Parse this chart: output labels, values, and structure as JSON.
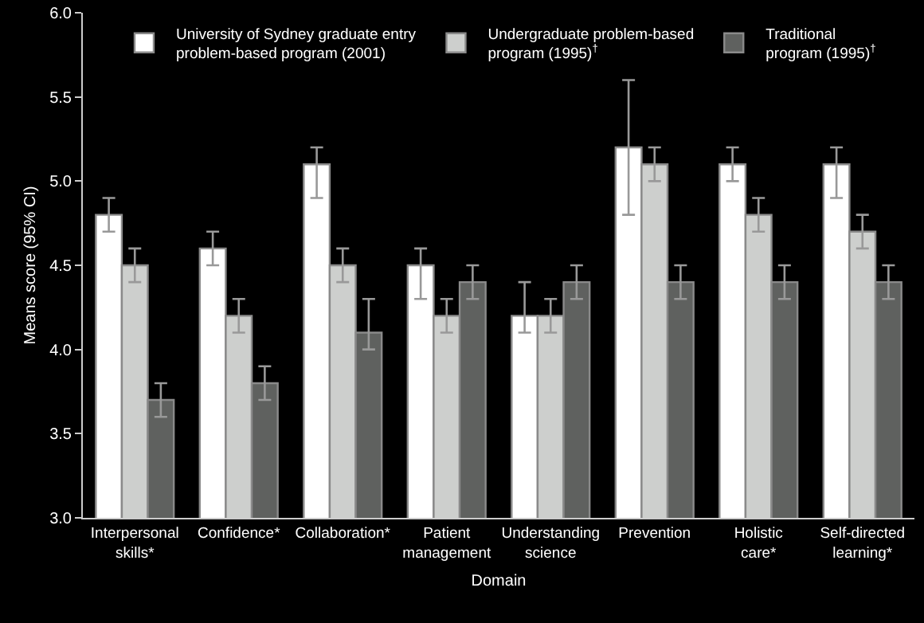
{
  "chart_data": {
    "type": "bar",
    "xlabel": "Domain",
    "ylabel": "Means score (95% CI)",
    "categories": [
      "Interpersonal\nskills*",
      "Confidence*",
      "Collaboration*",
      "Patient\nmanagement",
      "Understanding\nscience",
      "Prevention",
      "Holistic\ncare*",
      "Self-directed\nlearning*"
    ],
    "series": [
      {
        "name": "University of Sydney graduate entry\nproblem-based program (2001)",
        "color": "#ffffff",
        "values": [
          4.8,
          4.6,
          5.1,
          4.5,
          4.2,
          5.2,
          5.1,
          5.1
        ],
        "errors": [
          [
            4.7,
            4.9
          ],
          [
            4.5,
            4.7
          ],
          [
            4.9,
            5.2
          ],
          [
            4.3,
            4.6
          ],
          [
            4.1,
            4.4
          ],
          [
            4.8,
            5.6
          ],
          [
            5.0,
            5.2
          ],
          [
            4.9,
            5.2
          ]
        ]
      },
      {
        "name": "Undergraduate problem-based\nprogram (1995)$^{†}$",
        "color": "#cdcfcd",
        "values": [
          4.5,
          4.2,
          4.5,
          4.2,
          4.2,
          5.1,
          4.8,
          4.7
        ],
        "errors": [
          [
            4.4,
            4.6
          ],
          [
            4.1,
            4.3
          ],
          [
            4.4,
            4.6
          ],
          [
            4.1,
            4.3
          ],
          [
            4.1,
            4.3
          ],
          [
            5.0,
            5.2
          ],
          [
            4.7,
            4.9
          ],
          [
            4.6,
            4.8
          ]
        ]
      },
      {
        "name": "Traditional\nprogram (1995)$^{†}$",
        "color": "#5f615f",
        "values": [
          3.7,
          3.8,
          4.1,
          4.4,
          4.4,
          4.4,
          4.4,
          4.4
        ],
        "errors": [
          [
            3.6,
            3.8
          ],
          [
            3.7,
            3.9
          ],
          [
            4.0,
            4.3
          ],
          [
            4.3,
            4.5
          ],
          [
            4.3,
            4.5
          ],
          [
            4.3,
            4.5
          ],
          [
            4.3,
            4.5
          ],
          [
            4.3,
            4.5
          ]
        ]
      }
    ],
    "ylim": [
      3,
      6
    ],
    "yticks": [
      {
        "value": 3,
        "label": "3.0"
      },
      3.5,
      {
        "value": 4,
        "label": "4.0"
      },
      4.5,
      {
        "value": 5,
        "label": "5.0"
      },
      5.5,
      {
        "value": 6,
        "label": "6.0"
      }
    ],
    "grid": false,
    "legend": "top"
  }
}
